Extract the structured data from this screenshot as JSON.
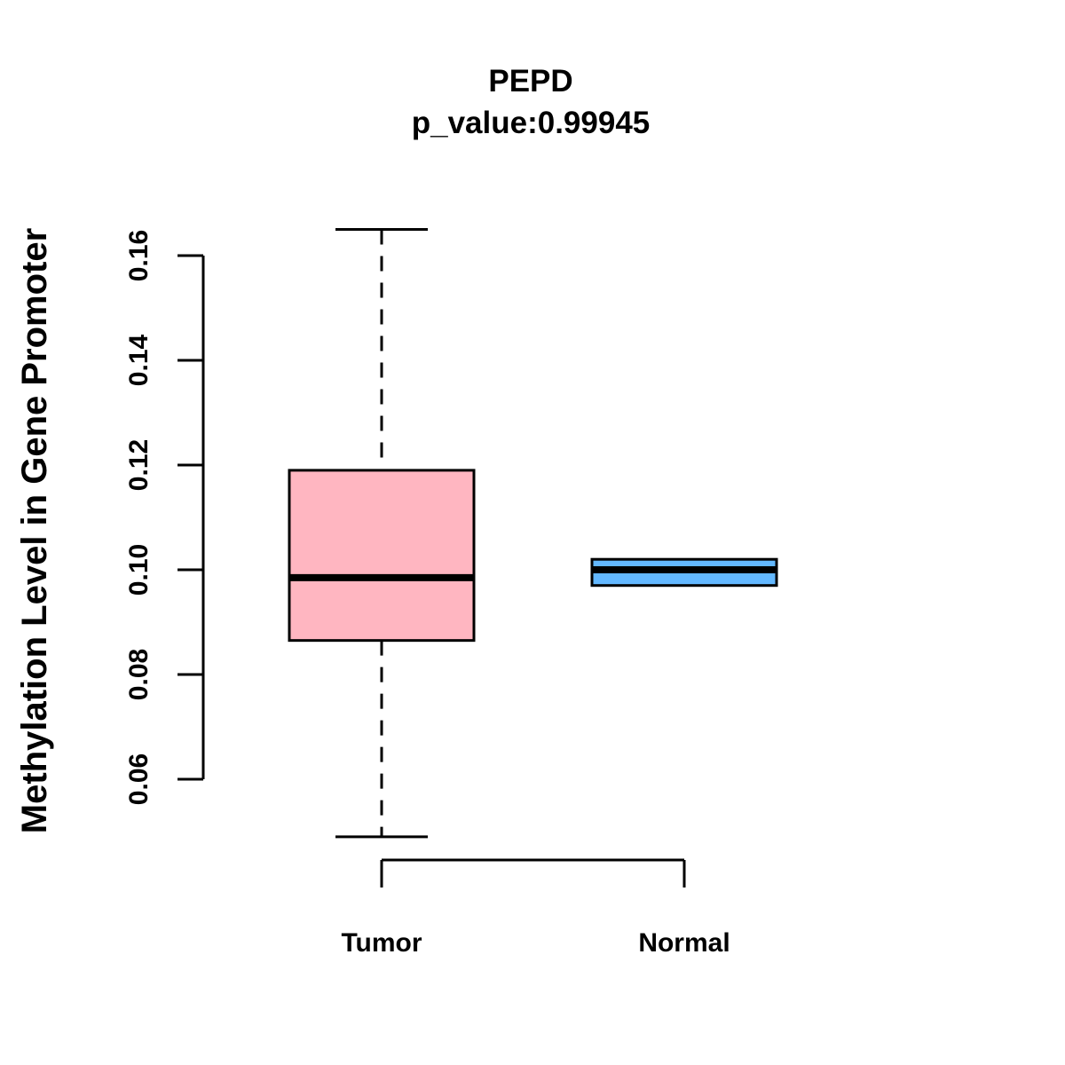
{
  "window": {
    "background_color": "#FFFFFF",
    "kind": "statistical-plot"
  },
  "colors": {
    "tumor_fill": "#FFB6C1",
    "normal_fill": "#63B8FF",
    "line": "#000000",
    "text": "#000000",
    "background": "#FFFFFF"
  },
  "chart_data": {
    "type": "boxplot",
    "title": "PEPD",
    "subtitle": "p_value:0.99945",
    "p_value": 0.99945,
    "gene": "PEPD",
    "xlabel": "",
    "ylabel": "Methylation Level in Gene Promoter",
    "categories": [
      "Tumor",
      "Normal"
    ],
    "yticks": [
      0.06,
      0.08,
      0.1,
      0.12,
      0.14,
      0.16
    ],
    "ytick_labels": [
      "0.06",
      "0.08",
      "0.10",
      "0.12",
      "0.14",
      "0.16"
    ],
    "ylim": [
      0.049,
      0.165
    ],
    "grid": "off",
    "legend": "none",
    "whisker_style": "dashed",
    "series": [
      {
        "name": "Tumor",
        "fill": "#FFB6C1",
        "whisker_low": 0.049,
        "q1": 0.0865,
        "median": 0.0985,
        "q3": 0.119,
        "whisker_high": 0.165
      },
      {
        "name": "Normal",
        "fill": "#63B8FF",
        "whisker_low": 0.097,
        "q1": 0.097,
        "median": 0.1,
        "q3": 0.102,
        "whisker_high": 0.102
      }
    ]
  }
}
